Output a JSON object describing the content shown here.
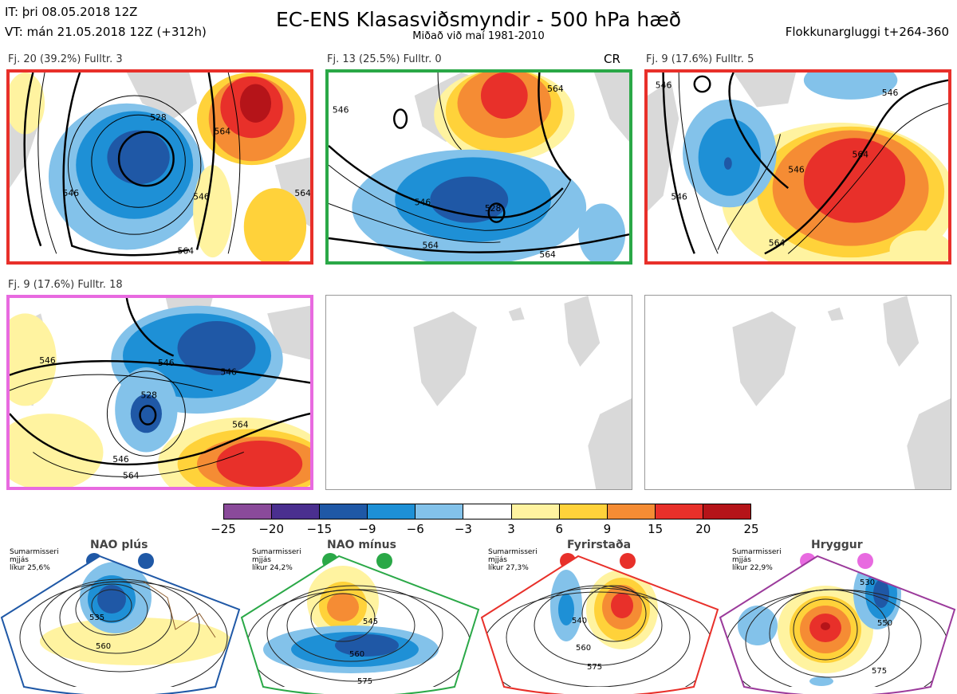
{
  "header": {
    "it_line": "IT: þri 08.05.2018 12Z",
    "vt_line": "VT: mán 21.05.2018 12Z  (+312h)",
    "title": "EC-ENS Klasasviðsmyndir - 500 hPa hæð",
    "subtitle": "Miðað við maí 1981-2010",
    "window": "Flokkunargluggi t+264-360"
  },
  "panels": [
    {
      "label": "Fj. 20 (39.2%)   Fulltr. 3",
      "border": "#e8302a",
      "contours": [
        "528",
        "546",
        "546",
        "564",
        "564",
        "564"
      ]
    },
    {
      "label": "Fj. 13 (25.5%)   Fulltr. 0",
      "border": "#2aa847",
      "extra": "CR",
      "contours": [
        "546",
        "564",
        "528",
        "546",
        "564",
        "564"
      ]
    },
    {
      "label": "Fj. 9 (17.6%)   Fulltr. 5",
      "border": "#e8302a",
      "contours": [
        "546",
        "546",
        "564",
        "564",
        "546",
        "546"
      ]
    },
    {
      "label": "Fj. 9 (17.6%)   Fulltr. 18",
      "border": "#e86ae0",
      "contours": [
        "546",
        "546",
        "546",
        "528",
        "564",
        "546",
        "564"
      ]
    }
  ],
  "colorbar": {
    "colors": [
      "#8a4a9a",
      "#4a2f8f",
      "#1f58a6",
      "#1e90d6",
      "#83c2ea",
      "#ffffff",
      "#fff3a0",
      "#ffd23a",
      "#f58c34",
      "#e8302a",
      "#b51419"
    ],
    "ticks": [
      "−25",
      "−20",
      "−15",
      "−9",
      "−6",
      "−3",
      "3",
      "6",
      "9",
      "15",
      "20",
      "25"
    ]
  },
  "regimes": [
    {
      "name": "NAO plús",
      "note": [
        "Sumarmisseri",
        "mjjás",
        "líkur 25,6%"
      ],
      "color": "#1f58a6",
      "contours": [
        "535",
        "560"
      ]
    },
    {
      "name": "NAO mínus",
      "note": [
        "Sumarmisseri",
        "mjjás",
        "líkur 24,2%"
      ],
      "color": "#2aa847",
      "contours": [
        "545",
        "560",
        "575"
      ]
    },
    {
      "name": "Fyrirstaða",
      "note": [
        "Sumarmisseri",
        "mjjás",
        "líkur 27,3%"
      ],
      "color": "#e8302a",
      "contours": [
        "540",
        "560",
        "575"
      ]
    },
    {
      "name": "Hryggur",
      "note": [
        "Sumarmisseri",
        "mjjás",
        "líkur 22,9%"
      ],
      "color": "#9b3a9b",
      "contours": [
        "530",
        "550",
        "575"
      ]
    }
  ]
}
